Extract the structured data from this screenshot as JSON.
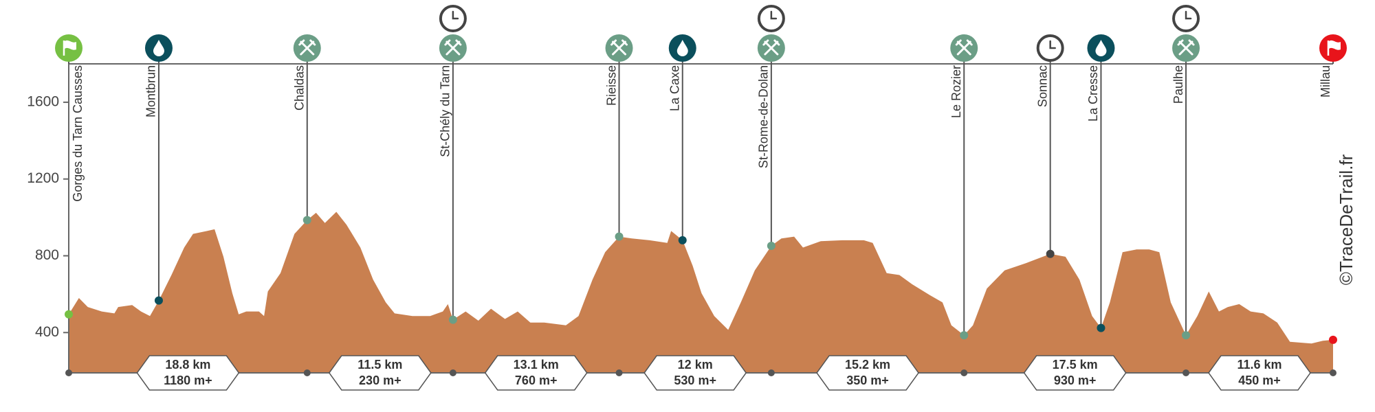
{
  "chart_data": {
    "type": "area",
    "color": "#c98050",
    "watermark": "©TraceDeTrail.fr",
    "ylim": [
      190,
      1800
    ],
    "xlim": [
      0,
      99.7
    ],
    "yticks": [
      400,
      800,
      1200,
      1600
    ],
    "x": [
      0,
      0.8,
      1.5,
      2.6,
      3.6,
      3.9,
      5,
      5.7,
      6.4,
      7.1,
      8.1,
      9.1,
      9.8,
      10.9,
      11.5,
      12.2,
      12.9,
      13.4,
      14,
      15,
      15.4,
      15.7,
      16.7,
      17.8,
      18.8,
      19.5,
      20.2,
      21.1,
      21.9,
      23,
      24,
      25,
      25.7,
      27.1,
      28.5,
      29.5,
      29.9,
      30.3,
      31.3,
      32.3,
      33.3,
      34.4,
      35.4,
      36.4,
      37.5,
      39.2,
      40.2,
      41.3,
      42.3,
      43.4,
      44.4,
      45.8,
      47.2,
      47.5,
      48.4,
      49.2,
      49.9,
      50.9,
      52,
      53,
      54.1,
      55.4,
      56.2,
      57.2,
      57.9,
      59.3,
      61,
      62.7,
      63.4,
      64.5,
      65.5,
      66.5,
      67.9,
      68.9,
      69.6,
      70.6,
      71.3,
      72.4,
      73.8,
      75.5,
      77.4,
      78.6,
      79.7,
      80.7,
      81.4,
      82.1,
      83.1,
      84.2,
      85.2,
      86,
      86.9,
      88.1,
      89,
      89.9,
      90.7,
      91.4,
      92.3,
      93.2,
      94.2,
      95.3,
      96.3,
      98,
      98.9,
      99.7
    ],
    "values": [
      495,
      580,
      533,
      510,
      500,
      533,
      543,
      510,
      486,
      567,
      700,
      843,
      914,
      929,
      938,
      795,
      605,
      495,
      510,
      510,
      486,
      614,
      710,
      914,
      986,
      1024,
      971,
      1029,
      962,
      843,
      676,
      557,
      500,
      486,
      486,
      510,
      548,
      467,
      510,
      462,
      524,
      471,
      510,
      452,
      452,
      438,
      486,
      676,
      819,
      900,
      890,
      881,
      867,
      929,
      881,
      748,
      605,
      486,
      414,
      557,
      724,
      852,
      890,
      900,
      843,
      876,
      881,
      881,
      867,
      710,
      700,
      652,
      595,
      557,
      438,
      386,
      438,
      629,
      724,
      762,
      810,
      795,
      676,
      486,
      424,
      557,
      819,
      833,
      833,
      819,
      557,
      386,
      486,
      614,
      510,
      533,
      548,
      510,
      500,
      452,
      352,
      343,
      357,
      362
    ],
    "waypoints": [
      {
        "name": "Gorges du Tarn Causses",
        "x": 0,
        "elevation": 495,
        "icon": "start",
        "color": "#76c043",
        "cutoff": false
      },
      {
        "name": "Montbrun",
        "x": 7.1,
        "elevation": 567,
        "icon": "water",
        "color": "#0b4f5c",
        "cutoff": false
      },
      {
        "name": "Chaldas",
        "x": 18.8,
        "elevation": 986,
        "icon": "food",
        "color": "#6b9e86",
        "cutoff": false
      },
      {
        "name": "St-Chély du Tarn",
        "x": 30.3,
        "elevation": 467,
        "icon": "food",
        "color": "#6b9e86",
        "cutoff": true
      },
      {
        "name": "Rieisse",
        "x": 43.4,
        "elevation": 900,
        "icon": "food",
        "color": "#6b9e86",
        "cutoff": false
      },
      {
        "name": "La Caxe",
        "x": 48.4,
        "elevation": 881,
        "icon": "water",
        "color": "#0b4f5c",
        "cutoff": false
      },
      {
        "name": "St-Rome-de-Dolan",
        "x": 55.4,
        "elevation": 852,
        "icon": "food",
        "color": "#6b9e86",
        "cutoff": true
      },
      {
        "name": "Le Rozier",
        "x": 70.6,
        "elevation": 386,
        "icon": "food",
        "color": "#6b9e86",
        "cutoff": false
      },
      {
        "name": "Sonnac",
        "x": 77.4,
        "elevation": 810,
        "icon": "clock",
        "color": "#444444",
        "cutoff": false
      },
      {
        "name": "La Cresse",
        "x": 81.4,
        "elevation": 424,
        "icon": "water",
        "color": "#0b4f5c",
        "cutoff": false
      },
      {
        "name": "Paulhe",
        "x": 88.1,
        "elevation": 386,
        "icon": "food",
        "color": "#6b9e86",
        "cutoff": true
      },
      {
        "name": "Millau",
        "x": 99.7,
        "elevation": 362,
        "icon": "finish",
        "color": "#e8141b",
        "cutoff": false
      }
    ],
    "segments": [
      {
        "x": [
          0,
          18.8
        ],
        "distance": "18.8 km",
        "gain": "1180 m+"
      },
      {
        "x": [
          18.8,
          30.3
        ],
        "distance": "11.5 km",
        "gain": "230 m+"
      },
      {
        "x": [
          30.3,
          43.4
        ],
        "distance": "13.1 km",
        "gain": "760 m+"
      },
      {
        "x": [
          43.4,
          55.4
        ],
        "distance": "12 km",
        "gain": "530 m+"
      },
      {
        "x": [
          55.4,
          70.6
        ],
        "distance": "15.2 km",
        "gain": "350 m+"
      },
      {
        "x": [
          70.6,
          88.1
        ],
        "distance": "17.5 km",
        "gain": "930 m+"
      },
      {
        "x": [
          88.1,
          99.7
        ],
        "distance": "11.6 km",
        "gain": "450 m+"
      }
    ]
  }
}
